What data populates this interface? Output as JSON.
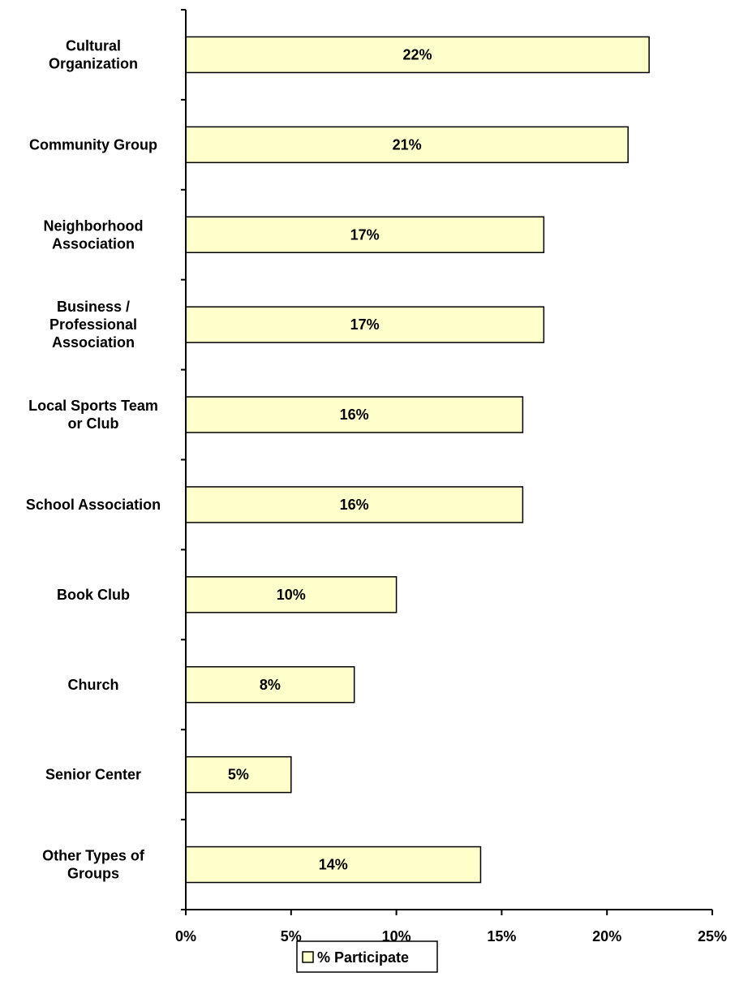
{
  "chart_data": {
    "type": "bar",
    "orientation": "horizontal",
    "categories": [
      [
        "Cultural",
        "Organization"
      ],
      [
        "Community Group"
      ],
      [
        "Neighborhood",
        "Association"
      ],
      [
        "Business /",
        "Professional",
        "Association"
      ],
      [
        "Local Sports Team",
        "or Club"
      ],
      [
        "School Association"
      ],
      [
        "Book Club"
      ],
      [
        "Church"
      ],
      [
        "Senior Center"
      ],
      [
        "Other Types of",
        "Groups"
      ]
    ],
    "values": [
      22,
      21,
      17,
      17,
      16,
      16,
      10,
      8,
      5,
      14
    ],
    "data_labels": [
      "22%",
      "21%",
      "17%",
      "17%",
      "16%",
      "16%",
      "10%",
      "8%",
      "5%",
      "14%"
    ],
    "series": [
      {
        "name": "% Participate",
        "values": [
          22,
          21,
          17,
          17,
          16,
          16,
          10,
          8,
          5,
          14
        ]
      }
    ],
    "xlim": [
      0,
      25
    ],
    "x_ticks": [
      0,
      5,
      10,
      15,
      20,
      25
    ],
    "x_tick_labels": [
      "0%",
      "5%",
      "10%",
      "15%",
      "20%",
      "25%"
    ],
    "legend": {
      "label": "% Participate",
      "position": "bottom"
    },
    "grid": false,
    "bar_color": "#FFFFCC",
    "bar_stroke": "#000000"
  }
}
